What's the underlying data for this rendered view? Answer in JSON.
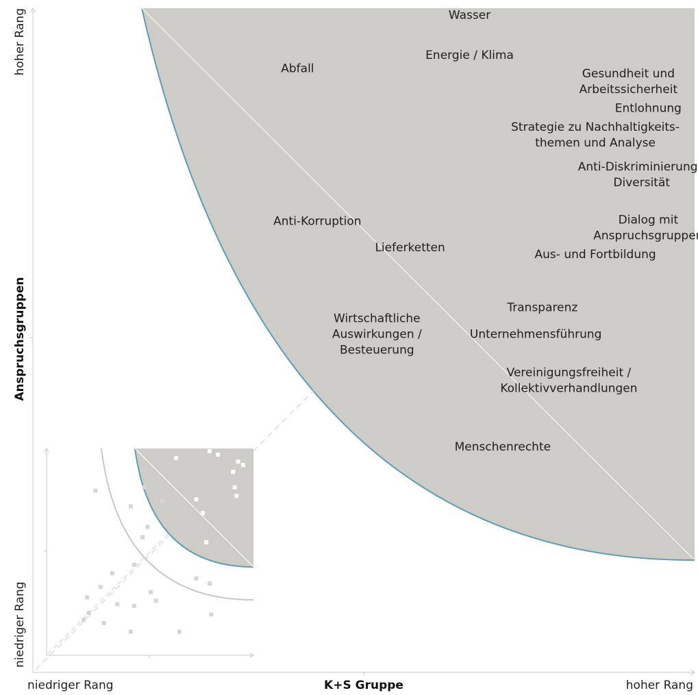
{
  "chart_data": {
    "type": "scatter",
    "title": "",
    "xlabel": "K+S Gruppe",
    "ylabel": "Anspruchsgruppen",
    "x_ticks": {
      "low": "niedriger Rang",
      "high": "hoher Rang"
    },
    "y_ticks": {
      "low": "niedriger Rang",
      "high": "hoher Rang"
    },
    "xlim": [
      0,
      1
    ],
    "ylim": [
      0,
      1
    ],
    "grid": false,
    "colors": {
      "region_fill": "#cdccc6",
      "region_edge": "#5f9db3",
      "axis": "#c9c9c9",
      "guide": "#c8c8c8",
      "diagonal_dash": "#cfcfcf"
    },
    "topics": [
      {
        "lines": [
          "Wasser"
        ],
        "x": 0.66,
        "y": 0.99
      },
      {
        "lines": [
          "Energie / Klima"
        ],
        "x": 0.66,
        "y": 0.93
      },
      {
        "lines": [
          "Abfall"
        ],
        "x": 0.4,
        "y": 0.91
      },
      {
        "lines": [
          "Gesundheit und",
          "Arbeitssicherheit"
        ],
        "x": 0.9,
        "y": 0.89
      },
      {
        "lines": [
          "Entlohnung"
        ],
        "x": 0.93,
        "y": 0.85
      },
      {
        "lines": [
          "Strategie zu Nachhaltigkeits-",
          "themen und Analyse"
        ],
        "x": 0.85,
        "y": 0.81
      },
      {
        "lines": [
          "Anti-Diskriminierung /",
          "Diversität"
        ],
        "x": 0.92,
        "y": 0.75
      },
      {
        "lines": [
          "Dialog mit",
          "Anspruchsgruppen"
        ],
        "x": 0.93,
        "y": 0.67
      },
      {
        "lines": [
          "Anti-Korruption"
        ],
        "x": 0.43,
        "y": 0.68
      },
      {
        "lines": [
          "Lieferketten"
        ],
        "x": 0.57,
        "y": 0.64
      },
      {
        "lines": [
          "Aus- und Fortbildung"
        ],
        "x": 0.85,
        "y": 0.63
      },
      {
        "lines": [
          "Transparenz"
        ],
        "x": 0.77,
        "y": 0.55
      },
      {
        "lines": [
          "Wirtschaftliche",
          "Auswirkungen /",
          "Besteuerung"
        ],
        "x": 0.52,
        "y": 0.51
      },
      {
        "lines": [
          "Unternehmensführung"
        ],
        "x": 0.76,
        "y": 0.51
      },
      {
        "lines": [
          "Vereinigungsfreiheit /",
          "Kollektivverhandlungen"
        ],
        "x": 0.81,
        "y": 0.44
      },
      {
        "lines": [
          "Menschenrechte"
        ],
        "x": 0.71,
        "y": 0.34
      }
    ],
    "inset_points": [
      [
        0.8,
        1.0
      ],
      [
        0.85,
        0.98
      ],
      [
        0.6,
        0.96
      ],
      [
        0.97,
        0.94
      ],
      [
        1.0,
        0.92
      ],
      [
        0.94,
        0.88
      ],
      [
        0.95,
        0.79
      ],
      [
        0.96,
        0.74
      ],
      [
        0.41,
        0.79
      ],
      [
        0.12,
        0.77
      ],
      [
        0.72,
        0.72
      ],
      [
        0.52,
        0.71
      ],
      [
        0.76,
        0.64
      ],
      [
        0.33,
        0.68
      ],
      [
        0.43,
        0.56
      ],
      [
        0.4,
        0.5
      ],
      [
        0.78,
        0.47
      ],
      [
        0.6,
        0.44
      ],
      [
        0.35,
        0.34
      ],
      [
        0.72,
        0.26
      ],
      [
        0.22,
        0.29
      ],
      [
        0.8,
        0.23
      ],
      [
        0.15,
        0.21
      ],
      [
        0.45,
        0.18
      ],
      [
        0.48,
        0.13
      ],
      [
        0.81,
        0.05
      ],
      [
        0.25,
        0.11
      ],
      [
        0.35,
        0.1
      ],
      [
        0.07,
        0.15
      ],
      [
        0.08,
        0.06
      ],
      [
        0.05,
        0.02
      ],
      [
        0.17,
        0.0
      ],
      [
        0.33,
        -0.05
      ],
      [
        0.62,
        -0.05
      ]
    ]
  }
}
